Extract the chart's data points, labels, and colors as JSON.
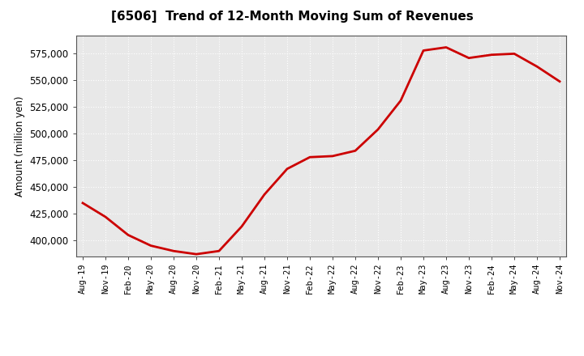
{
  "title": "[6506]  Trend of 12-Month Moving Sum of Revenues",
  "ylabel": "Amount (million yen)",
  "line_color": "#cc0000",
  "line_width": 2.0,
  "background_color": "#ffffff",
  "plot_bg_color": "#e8e8e8",
  "grid_color": "#ffffff",
  "ylim": [
    385000,
    592000
  ],
  "yticks": [
    400000,
    425000,
    450000,
    475000,
    500000,
    525000,
    550000,
    575000
  ],
  "values": [
    435000,
    422000,
    405000,
    395000,
    390000,
    387000,
    390000,
    413000,
    443000,
    467000,
    478000,
    479000,
    484000,
    504000,
    531000,
    578000,
    581000,
    571000,
    574000,
    575000,
    563000,
    549000
  ],
  "xtick_labels": [
    "Aug-19",
    "Nov-19",
    "Feb-20",
    "May-20",
    "Aug-20",
    "Nov-20",
    "Feb-21",
    "May-21",
    "Aug-21",
    "Nov-21",
    "Feb-22",
    "May-22",
    "Aug-22",
    "Nov-22",
    "Feb-23",
    "May-23",
    "Aug-23",
    "Nov-23",
    "Feb-24",
    "May-24",
    "Aug-24",
    "Nov-24"
  ]
}
